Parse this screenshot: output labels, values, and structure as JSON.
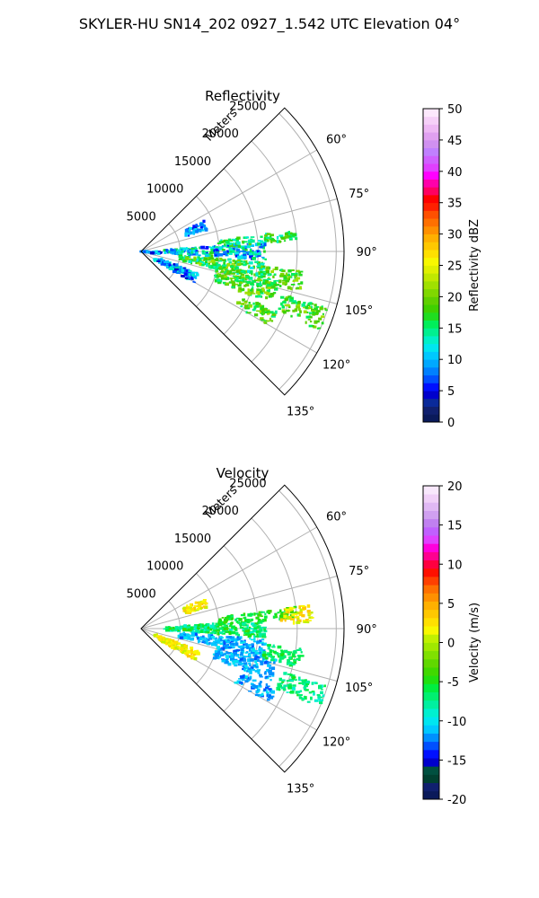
{
  "figure": {
    "title": "SKYLER-HU  SN14_202  0927_1.542 UTC Elevation 04°"
  },
  "colors": {
    "grid": "#b0b0b0",
    "frame": "#000000",
    "background": "#ffffff"
  },
  "chart_data": [
    {
      "type": "heatmap",
      "projection": "polar-sector",
      "title": "Reflectivity",
      "range_label": "Meters",
      "range_ticks": [
        "5000",
        "10000",
        "15000",
        "20000",
        "25000"
      ],
      "range_tick_values": [
        5000,
        10000,
        15000,
        20000,
        25000
      ],
      "rlim": [
        0,
        26000
      ],
      "azimuth_ticks": [
        "60°",
        "75°",
        "90°",
        "105°",
        "120°",
        "135°"
      ],
      "azimuth_tick_values": [
        60,
        75,
        90,
        105,
        120,
        135
      ],
      "azimuth_range": [
        45,
        135
      ],
      "grid": true,
      "colorbar": {
        "label": "Reflectivity dBZ",
        "ticks": [
          "0",
          "5",
          "10",
          "15",
          "20",
          "25",
          "30",
          "35",
          "40",
          "45",
          "50"
        ],
        "range": [
          0,
          50
        ],
        "colors": [
          "#0a1a5a",
          "#10206e",
          "#0a2a9a",
          "#0000cc",
          "#0010ff",
          "#0050ff",
          "#0080ff",
          "#00a8ff",
          "#00c8ff",
          "#00e6f0",
          "#00f0c8",
          "#00f090",
          "#00ee5a",
          "#20dd20",
          "#40d000",
          "#60d000",
          "#80d800",
          "#a0e000",
          "#c0e800",
          "#e0f000",
          "#f8f800",
          "#ffe000",
          "#ffc800",
          "#ffb000",
          "#ff9000",
          "#ff7000",
          "#ff5000",
          "#ff2000",
          "#ff0000",
          "#ff0060",
          "#ff00aa",
          "#ff00ff",
          "#e040ff",
          "#d060ff",
          "#c080ff",
          "#d090f0",
          "#e0a0f0",
          "#eeb8f4",
          "#f6d0f8",
          "#fce8fc"
        ]
      },
      "echo_regions": [
        {
          "az_start": 86,
          "az_end": 94,
          "r_start": 3000,
          "r_end": 16000,
          "value_range": [
            5,
            18
          ]
        },
        {
          "az_start": 82,
          "az_end": 86,
          "r_start": 10000,
          "r_end": 20000,
          "value_range": [
            12,
            20
          ]
        },
        {
          "az_start": 95,
          "az_end": 103,
          "r_start": 5000,
          "r_end": 16000,
          "value_range": [
            12,
            22
          ]
        },
        {
          "az_start": 103,
          "az_end": 112,
          "r_start": 10000,
          "r_end": 18000,
          "value_range": [
            14,
            22
          ]
        },
        {
          "az_start": 107,
          "az_end": 114,
          "r_start": 19000,
          "r_end": 25000,
          "value_range": [
            14,
            22
          ]
        },
        {
          "az_start": 114,
          "az_end": 120,
          "r_start": 14000,
          "r_end": 19000,
          "value_range": [
            14,
            22
          ]
        },
        {
          "az_start": 97,
          "az_end": 104,
          "r_start": 16000,
          "r_end": 21000,
          "value_range": [
            14,
            22
          ]
        },
        {
          "az_start": 64,
          "az_end": 72,
          "r_start": 6000,
          "r_end": 9000,
          "value_range": [
            4,
            12
          ]
        },
        {
          "az_start": 111,
          "az_end": 121,
          "r_start": 2000,
          "r_end": 8000,
          "value_range": [
            4,
            14
          ]
        },
        {
          "az_start": 91,
          "az_end": 98,
          "r_start": 0,
          "r_end": 2500,
          "value_range": [
            4,
            12
          ]
        }
      ]
    },
    {
      "type": "heatmap",
      "projection": "polar-sector",
      "title": "Velocity",
      "range_label": "Meters",
      "range_ticks": [
        "5000",
        "10000",
        "15000",
        "20000",
        "25000"
      ],
      "range_tick_values": [
        5000,
        10000,
        15000,
        20000,
        25000
      ],
      "rlim": [
        0,
        26000
      ],
      "azimuth_ticks": [
        "60°",
        "75°",
        "90°",
        "105°",
        "120°",
        "135°"
      ],
      "azimuth_tick_values": [
        60,
        75,
        90,
        105,
        120,
        135
      ],
      "azimuth_range": [
        45,
        135
      ],
      "grid": true,
      "colorbar": {
        "label": "Velocity (m/s)",
        "ticks": [
          "-20",
          "-15",
          "-10",
          "-5",
          "0",
          "5",
          "10",
          "15",
          "20"
        ],
        "range": [
          -20,
          20
        ],
        "colors": [
          "#0a1a5a",
          "#10206e",
          "#004030",
          "#005040",
          "#0000cc",
          "#0010ff",
          "#0050ff",
          "#0090ff",
          "#00c8ff",
          "#00e6f0",
          "#00f0d0",
          "#00f0a0",
          "#00f070",
          "#00ee40",
          "#20e010",
          "#40d800",
          "#60d800",
          "#80e000",
          "#a0e800",
          "#c0f000",
          "#f8f800",
          "#ffe000",
          "#ffc800",
          "#ffb000",
          "#ff9000",
          "#ff7000",
          "#ff4000",
          "#ff1000",
          "#ff0040",
          "#ff0090",
          "#ff00dd",
          "#e040ff",
          "#c060ff",
          "#c080f0",
          "#d0a0f0",
          "#e0b8f4",
          "#f0d0f8",
          "#f8e8fc"
        ]
      },
      "echo_regions": [
        {
          "az_start": 86,
          "az_end": 94,
          "r_start": 3000,
          "r_end": 16000,
          "value_range": [
            -9,
            -4
          ]
        },
        {
          "az_start": 82,
          "az_end": 86,
          "r_start": 10000,
          "r_end": 20000,
          "value_range": [
            -7,
            -3
          ]
        },
        {
          "az_start": 95,
          "az_end": 103,
          "r_start": 5000,
          "r_end": 16000,
          "value_range": [
            -13,
            -10
          ]
        },
        {
          "az_start": 103,
          "az_end": 112,
          "r_start": 10000,
          "r_end": 18000,
          "value_range": [
            -13,
            -10
          ]
        },
        {
          "az_start": 107,
          "az_end": 114,
          "r_start": 19000,
          "r_end": 25000,
          "value_range": [
            -9,
            -5
          ]
        },
        {
          "az_start": 114,
          "az_end": 120,
          "r_start": 14000,
          "r_end": 19000,
          "value_range": [
            -13,
            -10
          ]
        },
        {
          "az_start": 97,
          "az_end": 104,
          "r_start": 16000,
          "r_end": 21000,
          "value_range": [
            -8,
            -5
          ]
        },
        {
          "az_start": 82,
          "az_end": 88,
          "r_start": 18000,
          "r_end": 22000,
          "value_range": [
            0,
            4
          ]
        },
        {
          "az_start": 64,
          "az_end": 72,
          "r_start": 6000,
          "r_end": 9000,
          "value_range": [
            0,
            4
          ]
        },
        {
          "az_start": 111,
          "az_end": 121,
          "r_start": 2000,
          "r_end": 8000,
          "value_range": [
            0,
            4
          ]
        }
      ]
    }
  ]
}
